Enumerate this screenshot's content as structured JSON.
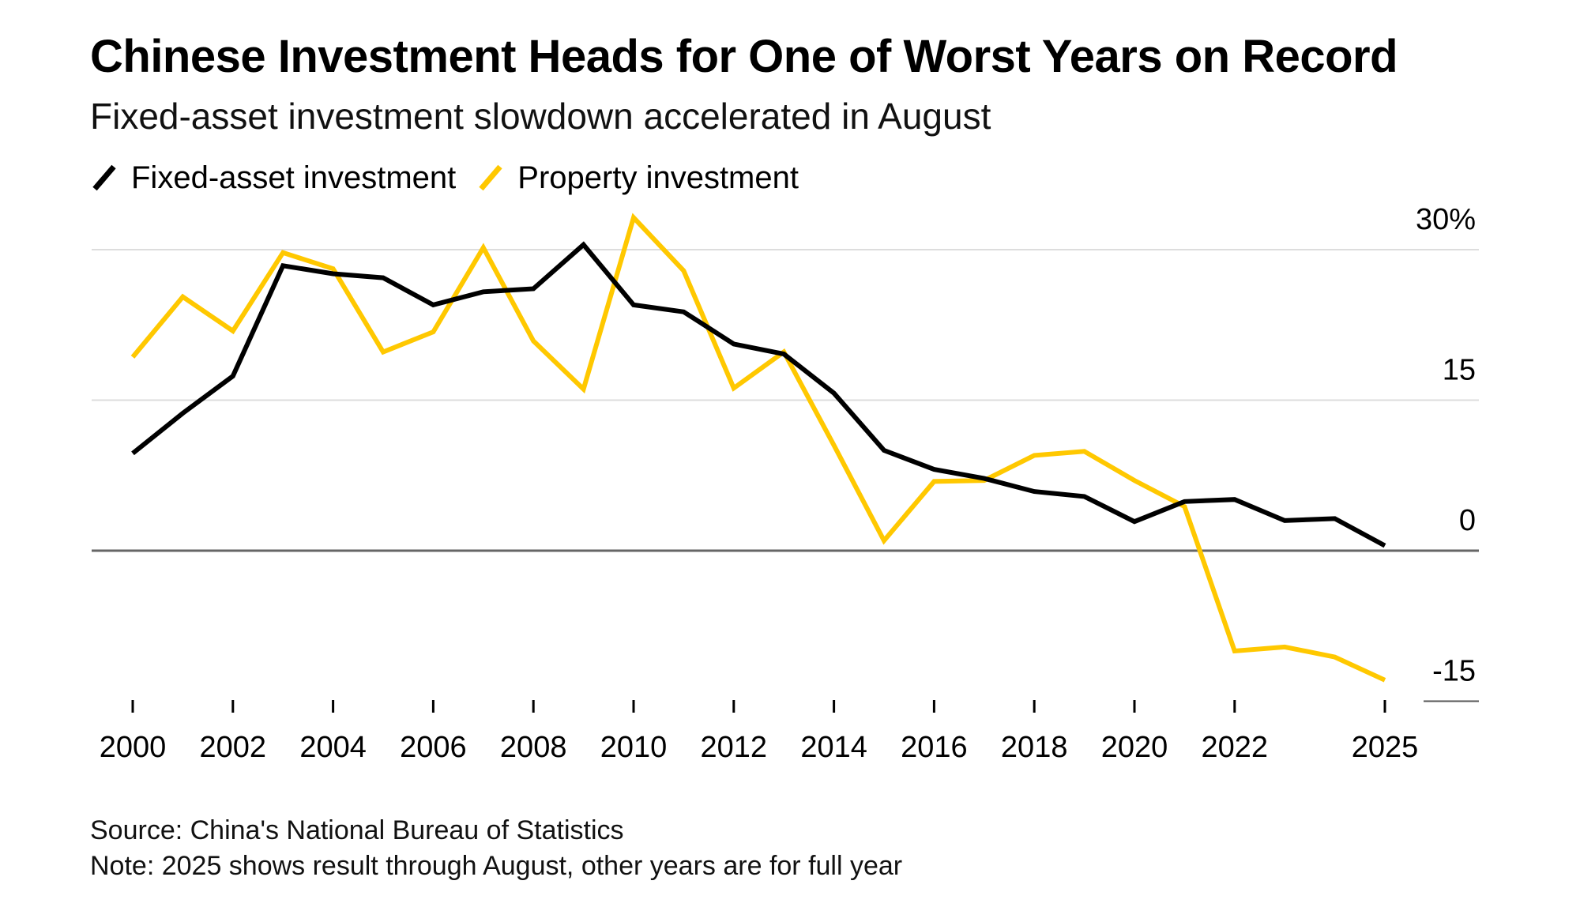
{
  "header": {
    "title": "Chinese Investment Heads for One of Worst Years on Record",
    "subtitle": "Fixed-asset investment slowdown accelerated in August"
  },
  "legend": [
    {
      "label": "Fixed-asset investment",
      "color": "#000000"
    },
    {
      "label": "Property investment",
      "color": "#FFC800"
    }
  ],
  "footer": {
    "source": "Source: China's National Bureau of Statistics",
    "note": "Note: 2025 shows result through August, other years are for full year"
  },
  "chart_data": {
    "type": "line",
    "x": [
      2000,
      2001,
      2002,
      2003,
      2004,
      2005,
      2006,
      2007,
      2008,
      2009,
      2010,
      2011,
      2012,
      2013,
      2014,
      2015,
      2016,
      2017,
      2018,
      2019,
      2020,
      2021,
      2022,
      2023,
      2024,
      2025
    ],
    "series": [
      {
        "name": "Fixed-asset investment",
        "color": "#000000",
        "values": [
          9.7,
          13.7,
          17.4,
          28.4,
          27.6,
          27.2,
          24.5,
          25.8,
          26.1,
          30.5,
          24.5,
          23.8,
          20.6,
          19.6,
          15.7,
          10.0,
          8.1,
          7.2,
          5.9,
          5.4,
          2.9,
          4.9,
          5.1,
          3.0,
          3.2,
          0.5
        ]
      },
      {
        "name": "Property investment",
        "color": "#FFC800",
        "values": [
          19.3,
          25.3,
          21.9,
          29.7,
          28.1,
          19.8,
          21.8,
          30.2,
          20.9,
          16.1,
          33.2,
          27.9,
          16.2,
          19.8,
          10.5,
          1.0,
          6.9,
          7.0,
          9.5,
          9.9,
          7.0,
          4.4,
          -10.0,
          -9.6,
          -10.6,
          -12.9
        ]
      }
    ],
    "xticks": [
      "2000",
      "2002",
      "2004",
      "2006",
      "2008",
      "2010",
      "2012",
      "2014",
      "2016",
      "2018",
      "2020",
      "2022",
      "2025"
    ],
    "xtick_years": [
      2000,
      2002,
      2004,
      2006,
      2008,
      2010,
      2012,
      2014,
      2016,
      2018,
      2020,
      2022,
      2025
    ],
    "yticks": [
      "30%",
      "15",
      "0",
      "-15"
    ],
    "ytick_values": [
      30,
      15,
      0,
      -15
    ],
    "ylim": [
      -15,
      30
    ],
    "xlim": [
      2000,
      2025
    ],
    "grid": true,
    "legend_position": "top-left"
  }
}
